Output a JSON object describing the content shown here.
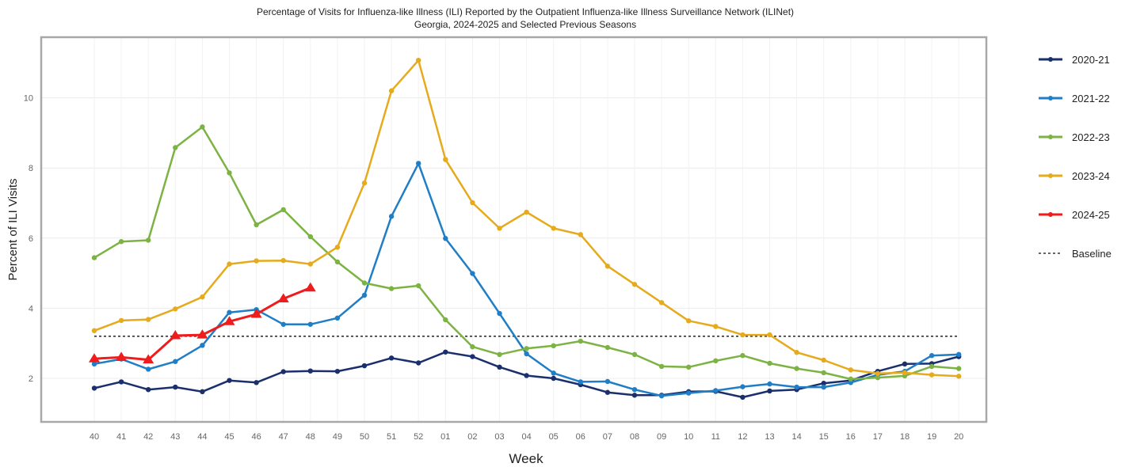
{
  "chart_data": {
    "type": "line",
    "title": "Percentage of Visits for Influenza-like Illness (ILI) Reported by the Outpatient Influenza-like Illness Surveillance Network (ILINet)",
    "subtitle": "Georgia, 2024-2025 and Selected Previous Seasons",
    "xlabel": "Week",
    "ylabel": "Percent of ILI Visits",
    "categories": [
      "40",
      "41",
      "42",
      "43",
      "44",
      "45",
      "46",
      "47",
      "48",
      "49",
      "50",
      "51",
      "52",
      "01",
      "02",
      "03",
      "04",
      "05",
      "06",
      "07",
      "08",
      "09",
      "10",
      "11",
      "12",
      "13",
      "14",
      "15",
      "16",
      "17",
      "18",
      "19",
      "20"
    ],
    "yticks": [
      "2",
      "4",
      "6",
      "8",
      "10"
    ],
    "ylim": [
      0.8,
      11.7
    ],
    "grid": true,
    "legend_position": "right",
    "baseline": {
      "name": "Baseline",
      "value": 3.2,
      "color": "#333333"
    },
    "series": [
      {
        "name": "2020-21",
        "color": "#1a2f6b",
        "marker": "circle",
        "values": [
          1.72,
          1.9,
          1.68,
          1.75,
          1.62,
          1.94,
          1.88,
          2.19,
          2.21,
          2.2,
          2.36,
          2.58,
          2.44,
          2.75,
          2.62,
          2.32,
          2.08,
          2.0,
          1.82,
          1.6,
          1.52,
          1.52,
          1.62,
          1.63,
          1.46,
          1.64,
          1.68,
          1.86,
          1.94,
          2.2,
          2.41,
          2.42,
          2.62
        ]
      },
      {
        "name": "2021-22",
        "color": "#1f7ec6",
        "marker": "circle",
        "values": [
          2.41,
          2.55,
          2.26,
          2.48,
          2.94,
          3.88,
          3.96,
          3.54,
          3.54,
          3.72,
          4.37,
          6.62,
          8.13,
          5.99,
          4.99,
          3.85,
          2.7,
          2.15,
          1.9,
          1.91,
          1.68,
          1.5,
          1.58,
          1.65,
          1.76,
          1.84,
          1.75,
          1.75,
          1.88,
          2.1,
          2.2,
          2.65,
          2.68
        ]
      },
      {
        "name": "2022-23",
        "color": "#7cb342",
        "marker": "circle",
        "values": [
          5.44,
          5.9,
          5.94,
          8.58,
          9.17,
          7.86,
          6.38,
          6.81,
          6.04,
          5.32,
          4.72,
          4.56,
          4.64,
          3.67,
          2.9,
          2.68,
          2.85,
          2.93,
          3.06,
          2.88,
          2.68,
          2.34,
          2.32,
          2.5,
          2.65,
          2.43,
          2.28,
          2.16,
          1.98,
          2.02,
          2.07,
          2.34,
          2.28
        ]
      },
      {
        "name": "2023-24",
        "color": "#e6ab1d",
        "marker": "circle",
        "values": [
          3.36,
          3.65,
          3.68,
          3.98,
          4.32,
          5.26,
          5.35,
          5.36,
          5.26,
          5.74,
          7.57,
          10.2,
          11.07,
          8.24,
          7.01,
          6.28,
          6.74,
          6.28,
          6.1,
          5.2,
          4.68,
          4.16,
          3.64,
          3.48,
          3.24,
          3.24,
          2.74,
          2.52,
          2.24,
          2.14,
          2.16,
          2.1,
          2.06
        ]
      },
      {
        "name": "2024-25",
        "color": "#ee1c1c",
        "marker": "triangle",
        "values": [
          2.56,
          2.6,
          2.53,
          3.22,
          3.24,
          3.62,
          3.83,
          4.27,
          4.58,
          null,
          null,
          null,
          null,
          null,
          null,
          null,
          null,
          null,
          null,
          null,
          null,
          null,
          null,
          null,
          null,
          null,
          null,
          null,
          null,
          null,
          null,
          null,
          null
        ]
      }
    ]
  }
}
